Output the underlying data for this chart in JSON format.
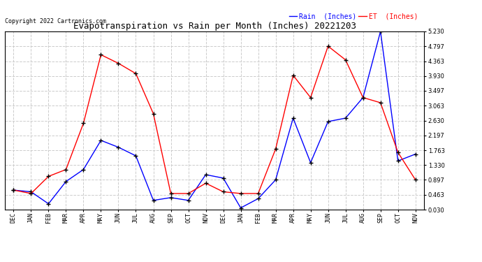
{
  "title": "Evapotranspiration vs Rain per Month (Inches) 20221203",
  "copyright": "Copyright 2022 Cartronics.com",
  "legend_rain": "Rain  (Inches)",
  "legend_et": "ET  (Inches)",
  "months": [
    "DEC",
    "JAN",
    "FEB",
    "MAR",
    "APR",
    "MAY",
    "JUN",
    "JUL",
    "AUG",
    "SEP",
    "OCT",
    "NOV",
    "DEC",
    "JAN",
    "FEB",
    "MAR",
    "APR",
    "MAY",
    "JUN",
    "JUL",
    "AUG",
    "SEP",
    "OCT",
    "NOV"
  ],
  "rain": [
    0.6,
    0.55,
    0.2,
    0.85,
    1.2,
    2.05,
    1.85,
    1.6,
    0.3,
    0.38,
    0.3,
    1.05,
    0.95,
    0.08,
    0.35,
    0.9,
    2.7,
    1.4,
    2.6,
    2.7,
    3.3,
    5.23,
    1.45,
    1.65
  ],
  "et": [
    0.6,
    0.5,
    1.0,
    1.2,
    2.55,
    4.55,
    4.3,
    4.0,
    2.83,
    0.5,
    0.5,
    0.8,
    0.55,
    0.5,
    0.5,
    1.8,
    3.95,
    3.3,
    4.8,
    4.4,
    3.3,
    3.15,
    1.7,
    0.9
  ],
  "rain_color": "blue",
  "et_color": "red",
  "marker": "+",
  "marker_color": "black",
  "marker_size": 4,
  "marker_linewidth": 1.0,
  "line_width": 1.0,
  "ylim_min": 0.03,
  "ylim_max": 5.23,
  "yticks": [
    0.03,
    0.463,
    0.897,
    1.33,
    1.763,
    2.197,
    2.63,
    3.063,
    3.497,
    3.93,
    4.363,
    4.797,
    5.23
  ],
  "grid_color": "#cccccc",
  "grid_style": "--",
  "title_fontsize": 9,
  "tick_fontsize": 6,
  "copyright_fontsize": 6,
  "legend_fontsize": 7,
  "background_color": "#ffffff"
}
